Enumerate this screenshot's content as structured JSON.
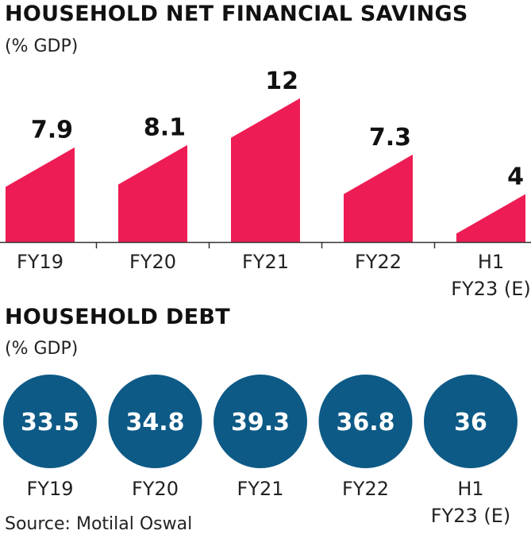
{
  "savings": {
    "title": "HOUSEHOLD NET FINANCIAL SAVINGS",
    "unit": "(% GDP)"
  },
  "debt": {
    "title": "HOUSEHOLD DEBT",
    "unit": "(% GDP)"
  },
  "source": "Source: Motilal Oswal",
  "colors": {
    "bar": "#ee1c54",
    "bubble": "#0d5a86",
    "axis": "#333333"
  },
  "chart_data": [
    {
      "type": "bar",
      "title": "HOUSEHOLD NET FINANCIAL SAVINGS",
      "subtitle": "(% GDP)",
      "categories": [
        [
          "FY19"
        ],
        [
          "FY20"
        ],
        [
          "FY21"
        ],
        [
          "FY22"
        ],
        [
          "H1",
          "FY23 (E)"
        ]
      ],
      "values": [
        7.9,
        8.1,
        12,
        7.3,
        4
      ],
      "value_labels": [
        "7.9",
        "8.1",
        "12",
        "7.3",
        "4"
      ],
      "ylim": [
        0,
        12
      ],
      "grid": false
    },
    {
      "type": "bubble",
      "title": "HOUSEHOLD DEBT",
      "subtitle": "(% GDP)",
      "categories": [
        [
          "FY19"
        ],
        [
          "FY20"
        ],
        [
          "FY21"
        ],
        [
          "FY22"
        ],
        [
          "H1",
          "FY23 (E)"
        ]
      ],
      "values": [
        33.5,
        34.8,
        39.3,
        36.8,
        36
      ],
      "value_labels": [
        "33.5",
        "34.8",
        "39.3",
        "36.8",
        "36"
      ]
    }
  ]
}
